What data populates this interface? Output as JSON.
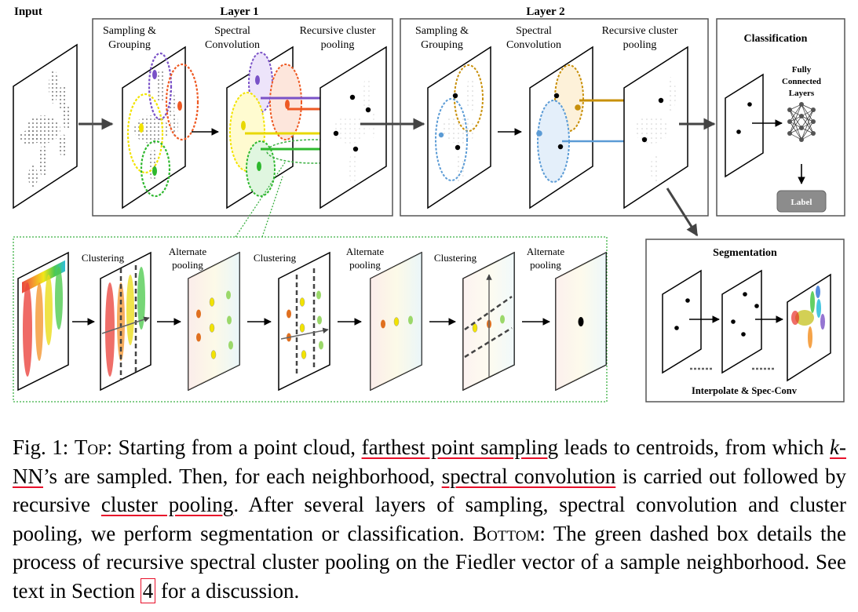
{
  "figure": {
    "input_label": "Input",
    "layer1_label": "Layer 1",
    "layer2_label": "Layer 2",
    "sampling_line1": "Sampling &",
    "sampling_line2": "Grouping",
    "spectral_line1": "Spectral",
    "spectral_line2": "Convolution",
    "recursive_line1": "Recursive cluster",
    "recursive_line2": "pooling",
    "classification_label": "Classification",
    "fc_line1": "Fully",
    "fc_line2": "Connected",
    "fc_line3": "Layers",
    "label_button": "Label",
    "segmentation_label": "Segmentation",
    "interpolate_label": "Interpolate & Spec-Conv",
    "clustering_label": "Clustering",
    "alternate_line1": "Alternate",
    "alternate_line2": "pooling",
    "colors": {
      "purple": "#7a52c7",
      "orange": "#ee5a24",
      "yellow": "#f2e300",
      "green": "#2eb82e",
      "gold": "#c8900a",
      "blue": "#5b9bd5",
      "dotted_green": "#3cb043",
      "caption_red": "#e8102a"
    }
  },
  "caption": {
    "fig_label": "Fig. 1:",
    "top_word": "Top",
    "s1": ": Starting from a point cloud, ",
    "u1": "farthest point sampling",
    "s2": " leads to centroids, from which ",
    "k": "k",
    "u2": "-NN",
    "s3": "’s are sampled. Then, for each neighborhood, ",
    "u3": "spectral convolution",
    "s4": " is carried out followed by recursive ",
    "u4": "cluster pooling",
    "s5": ". After several layers of sampling, spectral convolution and cluster pooling, we perform segmentation or classification. ",
    "bottom_word": "Bottom",
    "s6": ": The green dashed box details the process of recursive spectral cluster pooling on the Fiedler vector of a sample neighborhood. See text in Section ",
    "ref": "4",
    "s7": " for a discussion."
  }
}
